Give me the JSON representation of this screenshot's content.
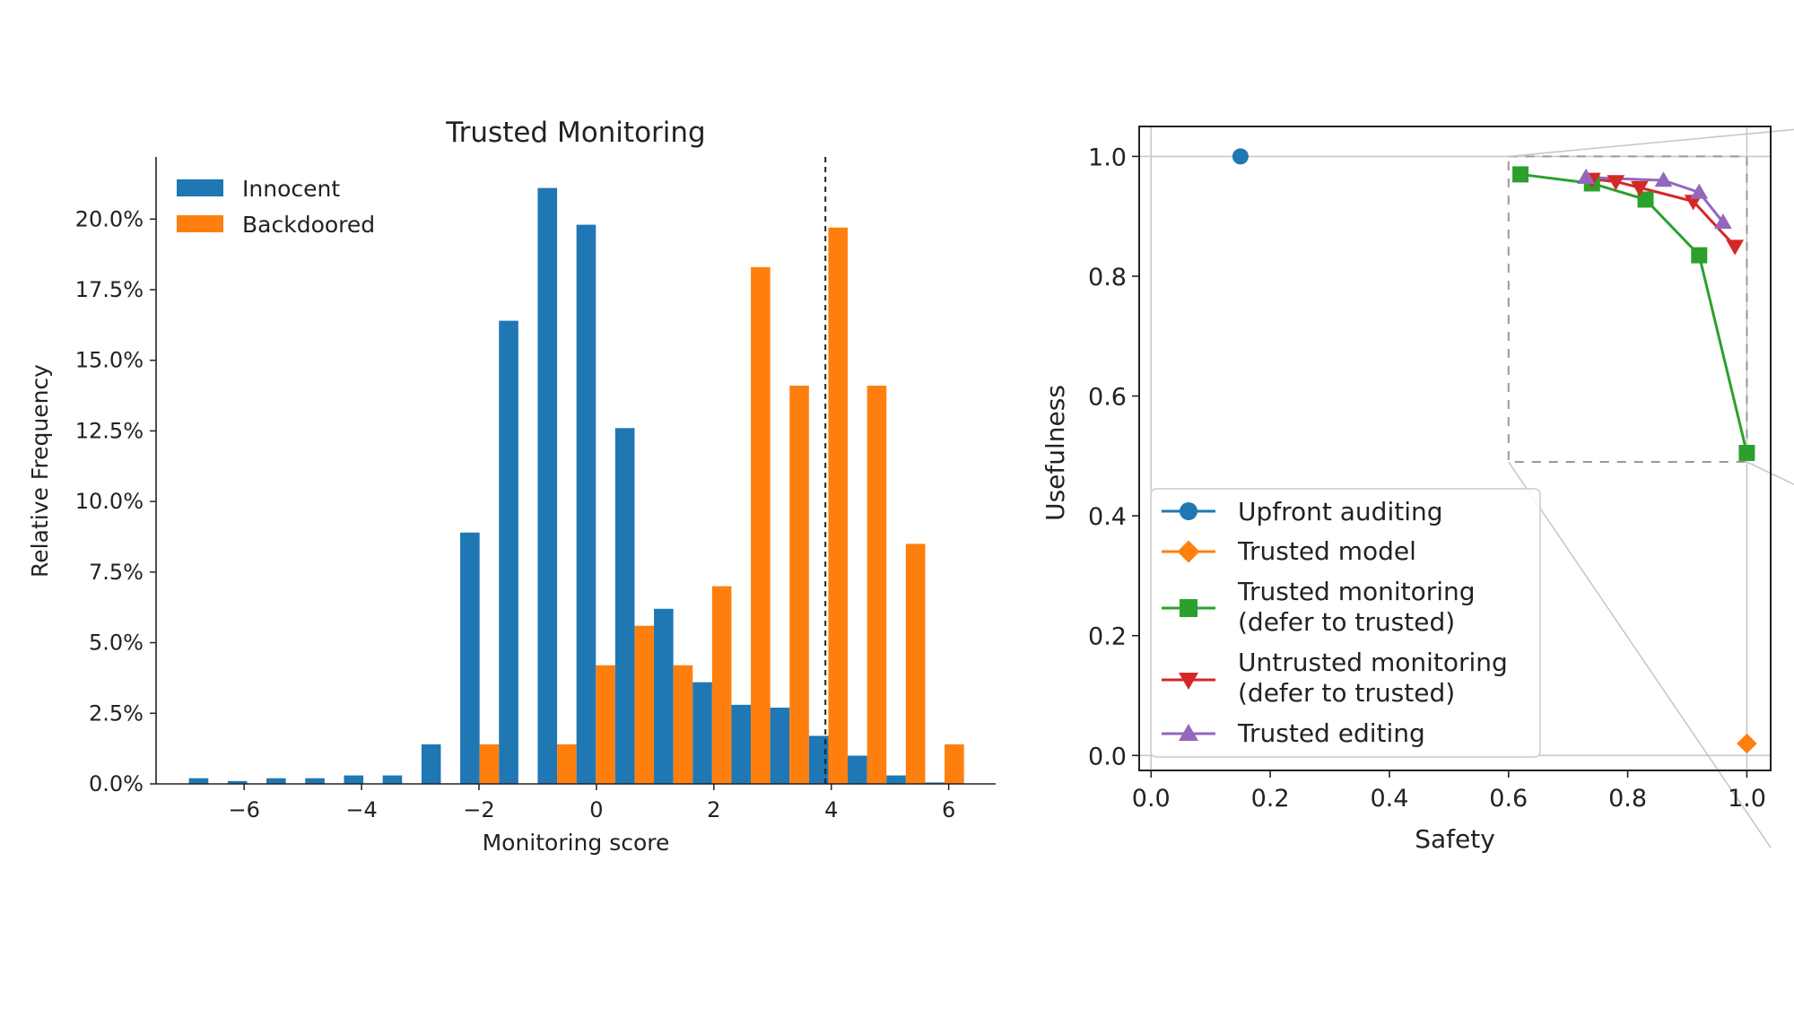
{
  "colors": {
    "innocent": "#1f77b4",
    "backdoored": "#ff7f0e",
    "upfront": "#1f77b4",
    "trusted_model": "#ff7f0e",
    "trusted_monitoring": "#2ca02c",
    "untrusted_monitoring": "#d62728",
    "trusted_editing": "#9467bd"
  },
  "chart_data": [
    {
      "type": "bar",
      "title": "Trusted Monitoring",
      "xlabel": "Monitoring score",
      "ylabel": "Relative Frequency",
      "xlim": [
        -7.5,
        6.8
      ],
      "ylim": [
        0,
        22.2
      ],
      "xticks": [
        -6,
        -4,
        -2,
        0,
        2,
        4,
        6
      ],
      "xtick_labels": [
        "−6",
        "−4",
        "−2",
        "0",
        "2",
        "4",
        "6"
      ],
      "yticks": [
        0,
        2.5,
        5,
        7.5,
        10,
        12.5,
        15,
        17.5,
        20
      ],
      "ytick_labels": [
        "0.0%",
        "2.5%",
        "5.0%",
        "7.5%",
        "10.0%",
        "12.5%",
        "15.0%",
        "17.5%",
        "20.0%"
      ],
      "threshold": 3.9,
      "legend_position": "top-left",
      "bin_width": 0.66,
      "bin_starts": [
        -6.94,
        -6.28,
        -5.62,
        -4.96,
        -4.3,
        -3.64,
        -2.98,
        -2.32,
        -1.66,
        -1.0,
        -0.34,
        0.32,
        0.98,
        1.64,
        2.3,
        2.96,
        3.62,
        4.28,
        4.94,
        5.6
      ],
      "series": [
        {
          "name": "Innocent",
          "values": [
            0.2,
            0.1,
            0.2,
            0.2,
            0.3,
            0.3,
            1.4,
            8.9,
            16.4,
            21.1,
            19.8,
            12.6,
            6.2,
            3.6,
            2.8,
            2.7,
            1.7,
            1.0,
            0.3,
            0.05
          ]
        },
        {
          "name": "Backdoored",
          "values": [
            0,
            0,
            0,
            0,
            0,
            0,
            0,
            1.4,
            0,
            1.4,
            4.2,
            5.6,
            4.2,
            7.0,
            18.3,
            14.1,
            19.7,
            14.1,
            8.5,
            1.4
          ]
        }
      ]
    },
    {
      "type": "line",
      "xlabel": "Safety",
      "ylabel": "Usefulness",
      "xlim": [
        -0.02,
        1.04
      ],
      "ylim": [
        -0.025,
        1.05
      ],
      "xticks": [
        0.0,
        0.2,
        0.4,
        0.6,
        0.8,
        1.0
      ],
      "xtick_labels": [
        "0.0",
        "0.2",
        "0.4",
        "0.6",
        "0.8",
        "1.0"
      ],
      "yticks": [
        0.0,
        0.2,
        0.4,
        0.6,
        0.8,
        1.0
      ],
      "ytick_labels": [
        "0.0",
        "0.2",
        "0.4",
        "0.6",
        "0.8",
        "1.0"
      ],
      "legend_position": "lower-left",
      "zoom_region": {
        "x": [
          0.6,
          1.0
        ],
        "y": [
          0.49,
          1.0
        ]
      },
      "series": [
        {
          "name": "Upfront auditing",
          "marker": "circle",
          "color_key": "upfront",
          "x": [
            0.15
          ],
          "y": [
            1.0
          ]
        },
        {
          "name": "Trusted model",
          "marker": "diamond",
          "color_key": "trusted_model",
          "x": [
            1.0
          ],
          "y": [
            0.02
          ]
        },
        {
          "name": "Trusted monitoring",
          "name_line2": "(defer to trusted)",
          "marker": "square",
          "color_key": "trusted_monitoring",
          "x": [
            0.62,
            0.74,
            0.83,
            0.92,
            1.0
          ],
          "y": [
            0.97,
            0.955,
            0.928,
            0.835,
            0.505
          ]
        },
        {
          "name": "Untrusted monitoring",
          "name_line2": "(defer to trusted)",
          "marker": "triangle-down",
          "color_key": "untrusted_monitoring",
          "x": [
            0.74,
            0.78,
            0.82,
            0.91,
            0.98
          ],
          "y": [
            0.962,
            0.958,
            0.948,
            0.925,
            0.85
          ]
        },
        {
          "name": "Trusted editing",
          "marker": "triangle-up",
          "color_key": "trusted_editing",
          "x": [
            0.73,
            0.86,
            0.92,
            0.96
          ],
          "y": [
            0.965,
            0.96,
            0.94,
            0.89
          ]
        }
      ]
    }
  ]
}
